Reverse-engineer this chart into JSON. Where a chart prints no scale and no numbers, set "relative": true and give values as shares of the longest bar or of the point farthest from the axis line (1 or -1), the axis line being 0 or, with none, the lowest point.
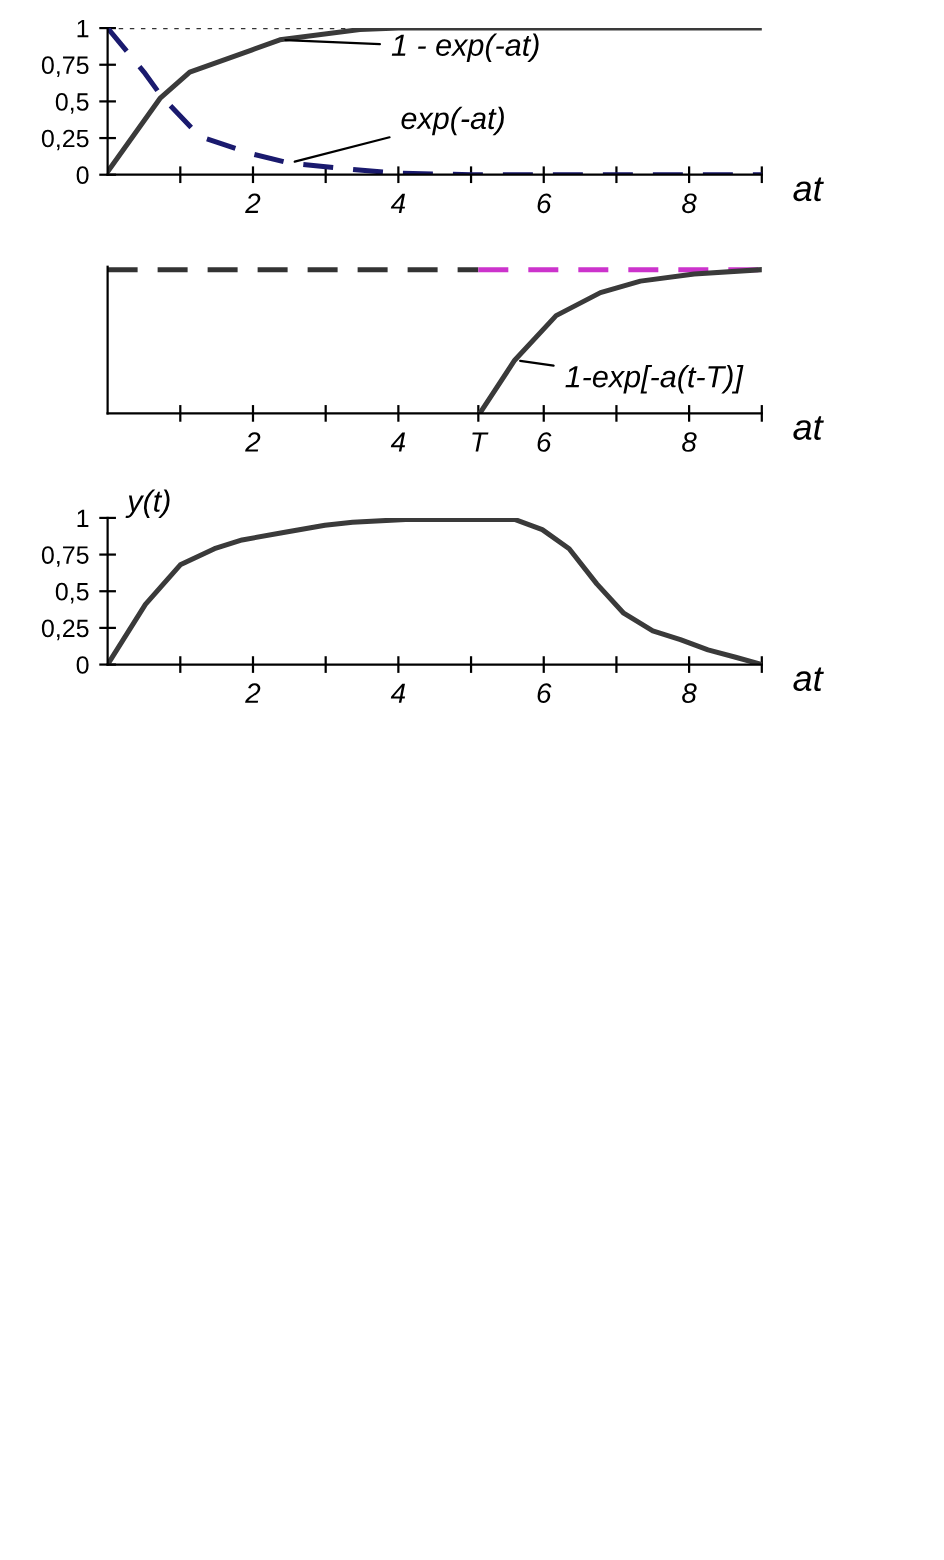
{
  "chart_data": [
    {
      "type": "line",
      "xlabel": "at",
      "xlim": [
        0,
        9
      ],
      "ylim": [
        0,
        1
      ],
      "xticks": [
        {
          "value": 1,
          "label": null
        },
        2,
        {
          "value": 3,
          "label": null
        },
        4,
        {
          "value": 5,
          "label": null
        },
        6,
        {
          "value": 7,
          "label": null
        },
        8,
        {
          "value": 9,
          "label": null
        }
      ],
      "yticks": [
        {
          "value": 0,
          "label": "0"
        },
        {
          "value": 0.25,
          "label": "0,25"
        },
        {
          "value": 0.5,
          "label": "0,5"
        },
        {
          "value": 0.75,
          "label": "0,75"
        },
        {
          "value": 1,
          "label": "1"
        }
      ],
      "ref_lines": [
        {
          "axis": "y",
          "value": 1,
          "color": "#333333",
          "line_style": "dotted"
        }
      ],
      "series": [
        {
          "x": [
            0,
            0.72,
            1.13,
            1.98,
            2.37,
            3.47,
            4,
            9
          ],
          "values": [
            0.02,
            0.52,
            0.7,
            0.85,
            0.92,
            0.99,
            1,
            1
          ],
          "color": "#3a3a3a",
          "line_style": "solid"
        },
        {
          "x": [
            0,
            0.5,
            0.75,
            1.27,
            2,
            2.5,
            3.5,
            4,
            5,
            9
          ],
          "values": [
            1,
            0.7,
            0.53,
            0.26,
            0.14,
            0.08,
            0.03,
            0.01,
            0,
            0
          ],
          "color": "#1a1a6e",
          "line_style": "dashed"
        }
      ],
      "annotations": [
        {
          "text": "1 - exp(-at)",
          "x": 2.37,
          "y": 0.92
        },
        {
          "text": "exp(-at)",
          "x": 2.5,
          "y": 0.08
        }
      ],
      "grid": false,
      "legend": false
    },
    {
      "type": "line",
      "xlabel": "at",
      "xlim": [
        0,
        9
      ],
      "relative": true,
      "xticks": [
        {
          "value": 1,
          "label": null
        },
        2,
        {
          "value": 3,
          "label": null
        },
        4,
        {
          "value": 5.1,
          "label": "T"
        },
        6,
        {
          "value": 7,
          "label": null
        },
        8,
        {
          "value": 9,
          "label": null
        }
      ],
      "series": [
        {
          "x": [
            0,
            5.1
          ],
          "values": [
            1,
            1
          ],
          "color": "#333333",
          "line_style": "dashed"
        },
        {
          "x": [
            5.1,
            9
          ],
          "values": [
            1,
            1
          ],
          "color": "#cc33cc",
          "line_style": "dashed"
        },
        {
          "x": [
            5.12,
            5.6,
            6.17,
            6.78,
            7.33,
            8.07,
            9
          ],
          "values": [
            0,
            0.37,
            0.68,
            0.84,
            0.92,
            0.97,
            1
          ],
          "color": "#3a3a3a",
          "line_style": "solid"
        }
      ],
      "annotations": [
        {
          "text": "1-exp[-a(t-T)]",
          "x": 5.6,
          "y": 0.37
        }
      ],
      "grid": false,
      "legend": false
    },
    {
      "type": "line",
      "xlabel": "at",
      "ylabel": "y(t)",
      "xlim": [
        0,
        9
      ],
      "ylim": [
        0,
        1
      ],
      "xticks": [
        {
          "value": 1,
          "label": null
        },
        2,
        {
          "value": 3,
          "label": null
        },
        4,
        {
          "value": 5,
          "label": null
        },
        6,
        {
          "value": 7,
          "label": null
        },
        8,
        {
          "value": 9,
          "label": null
        }
      ],
      "yticks": [
        {
          "value": 0,
          "label": "0"
        },
        {
          "value": 0.25,
          "label": "0,25"
        },
        {
          "value": 0.5,
          "label": "0,5"
        },
        {
          "value": 0.75,
          "label": "0,75"
        },
        {
          "value": 1,
          "label": "1"
        }
      ],
      "series": [
        {
          "x": [
            0,
            0.52,
            1,
            1.47,
            1.85,
            2.42,
            2.99,
            3.37,
            4.1,
            5.6,
            5.98,
            6.35,
            6.73,
            7.1,
            7.5,
            7.88,
            8.26,
            8.64,
            9
          ],
          "values": [
            0,
            0.41,
            0.68,
            0.79,
            0.85,
            0.9,
            0.95,
            0.97,
            0.99,
            0.99,
            0.92,
            0.79,
            0.55,
            0.35,
            0.23,
            0.17,
            0.1,
            0.05,
            0
          ],
          "color": "#3a3a3a",
          "line_style": "solid"
        }
      ],
      "grid": false,
      "legend": false
    }
  ]
}
